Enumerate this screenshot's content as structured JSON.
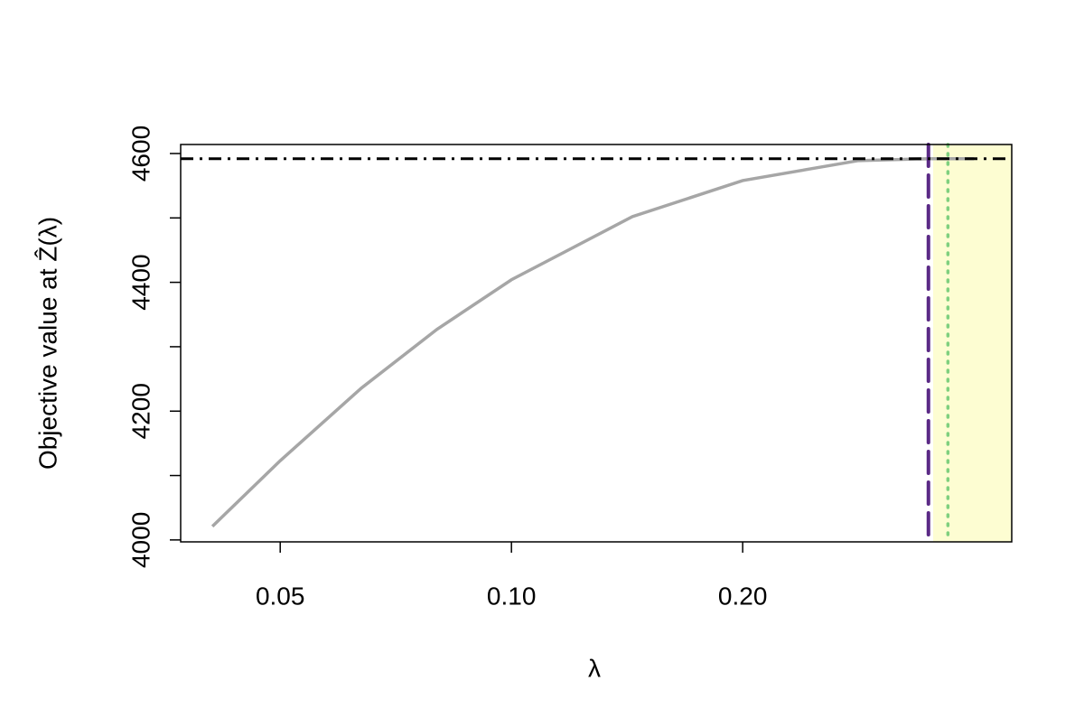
{
  "chart_data": {
    "type": "line",
    "xlabel": "λ",
    "ylabel": "Objective value at Ẑ(λ)",
    "xscale": "log",
    "xlim": [
      0.0371,
      0.448
    ],
    "ylim": [
      3997,
      4614
    ],
    "xticks": [
      0.05,
      {
        "value": 0.1,
        "label": "0.10"
      },
      {
        "value": 0.2,
        "label": "0.20"
      }
    ],
    "yticks": [
      4000,
      4200,
      4400,
      4600
    ],
    "yticks_minor": [
      4100,
      4300,
      4500
    ],
    "series": [
      {
        "name": "objective",
        "color": "#a6a6a6",
        "x": [
          0.0408,
          0.05,
          0.0638,
          0.08,
          0.1,
          0.1437,
          0.2,
          0.283,
          0.351,
          0.4
        ],
        "values": [
          4021,
          4123,
          4236,
          4327,
          4404,
          4502,
          4558,
          4589,
          4592,
          4592
        ]
      }
    ],
    "hline": {
      "value": 4592,
      "color": "#000000"
    },
    "vlines": [
      {
        "value": 0.349,
        "color": "#5b2a86",
        "style": "dashed"
      },
      {
        "value": 0.37,
        "color": "#7fd07f",
        "style": "dotted"
      }
    ],
    "shade": {
      "range": [
        0.354,
        0.448
      ],
      "color": "#fdfdd2"
    }
  }
}
